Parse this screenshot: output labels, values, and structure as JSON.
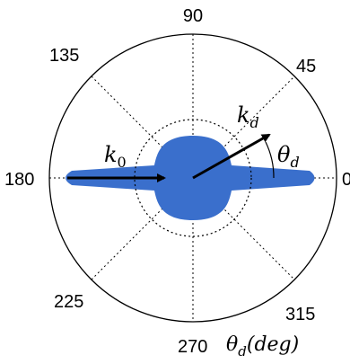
{
  "diagram": {
    "angle_labels": {
      "deg_0": "0",
      "deg_45": "45",
      "deg_90": "90",
      "deg_135": "135",
      "deg_180": "180",
      "deg_225": "225",
      "deg_270": "270",
      "deg_315": "315"
    },
    "vectors": {
      "incident": {
        "symbol": "k",
        "subscript": "0"
      },
      "diffracted": {
        "symbol": "k",
        "subscript": "d"
      }
    },
    "angle_symbol": {
      "symbol": "θ",
      "subscript": "d"
    },
    "axis_caption": {
      "symbol": "θ",
      "subscript": "d",
      "suffix": "(deg)"
    },
    "colors": {
      "pattern_fill": "#3a6fcc",
      "circle_stroke": "#000000",
      "arrow": "#000000"
    }
  }
}
